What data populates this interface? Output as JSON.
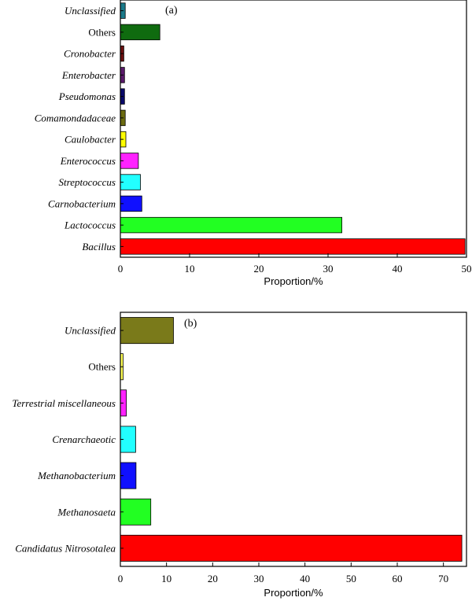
{
  "chart_data": [
    {
      "type": "bar",
      "orientation": "horizontal",
      "panel_label": "(a)",
      "xlabel": "Proportion/%",
      "xlim": [
        0,
        50
      ],
      "xticks": [
        "0",
        "10",
        "20",
        "30",
        "40",
        "50"
      ],
      "categories": [
        {
          "name": "Unclassified",
          "italic": true,
          "value": 0.7,
          "color": "#1a7a8a"
        },
        {
          "name": "Others",
          "italic": false,
          "value": 5.7,
          "color": "#0f6b0f"
        },
        {
          "name": "Cronobacter",
          "italic": true,
          "value": 0.5,
          "color": "#6b1010"
        },
        {
          "name": "Enterobacter",
          "italic": true,
          "value": 0.6,
          "color": "#5a1a6b"
        },
        {
          "name": "Pseudomonas",
          "italic": true,
          "value": 0.6,
          "color": "#0a0a6b"
        },
        {
          "name": "Comamondadaceae",
          "italic": true,
          "value": 0.7,
          "color": "#6b6b10"
        },
        {
          "name": "Caulobacter",
          "italic": true,
          "value": 0.8,
          "color": "#ffff00"
        },
        {
          "name": "Enterococcus",
          "italic": true,
          "value": 2.6,
          "color": "#ff22ff"
        },
        {
          "name": "Streptococcus",
          "italic": true,
          "value": 2.9,
          "color": "#22ffff"
        },
        {
          "name": "Carnobacterium",
          "italic": true,
          "value": 3.1,
          "color": "#1010ff"
        },
        {
          "name": "Lactococcus",
          "italic": true,
          "value": 32.0,
          "color": "#22ff22"
        },
        {
          "name": "Bacillus",
          "italic": true,
          "value": 49.8,
          "color": "#ff0000"
        }
      ]
    },
    {
      "type": "bar",
      "orientation": "horizontal",
      "panel_label": "(b)",
      "xlabel": "Proportion/%",
      "xlim": [
        0,
        75
      ],
      "xticks": [
        "0",
        "10",
        "20",
        "30",
        "40",
        "50",
        "60",
        "70"
      ],
      "categories": [
        {
          "name": "Unclassified",
          "italic": true,
          "value": 11.5,
          "color": "#7a7a1a"
        },
        {
          "name": "Others",
          "italic": false,
          "value": 0.6,
          "color": "#ffff55"
        },
        {
          "name": "Terrestrial miscellaneous",
          "italic": true,
          "value": 1.3,
          "color": "#ff22ff"
        },
        {
          "name": "Crenarchaeotic",
          "italic": true,
          "value": 3.3,
          "color": "#22ffff"
        },
        {
          "name": "Methanobacterium",
          "italic": true,
          "value": 3.4,
          "color": "#1010ff"
        },
        {
          "name": "Methanosaeta",
          "italic": true,
          "value": 6.6,
          "color": "#22ff22"
        },
        {
          "name": "Candidatus Nitrosotalea",
          "italic": true,
          "value": 74.0,
          "color": "#ff0000"
        }
      ]
    }
  ]
}
